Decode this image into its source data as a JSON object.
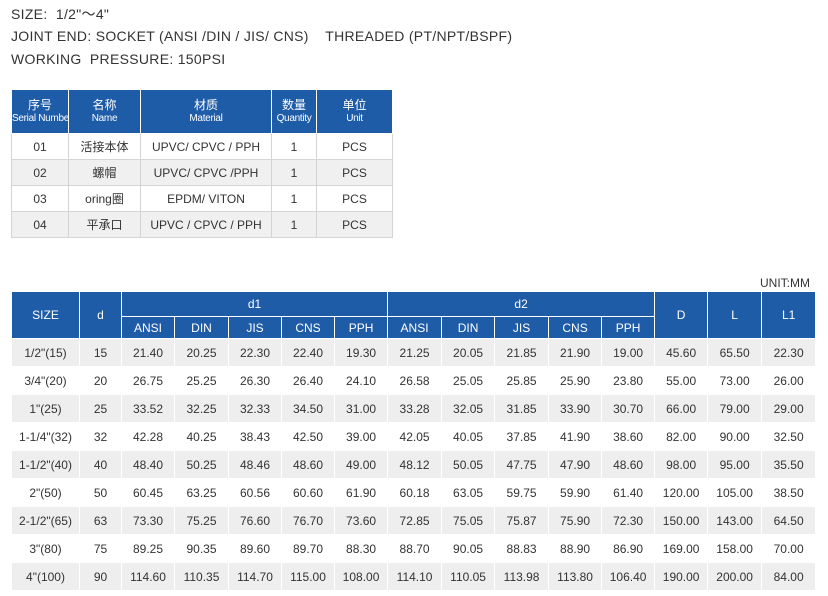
{
  "header": {
    "lines": [
      "SIZE:  1/2\"～4\"",
      "JOINT END: SOCKET (ANSI /DIN / JIS/ CNS)    THREADED (PT/NPT/BSPF)",
      "WORKING  PRESSURE: 150PSI"
    ]
  },
  "parts_table": {
    "columns": [
      {
        "zh": "序号",
        "en": "Serial Number"
      },
      {
        "zh": "名称",
        "en": "Name"
      },
      {
        "zh": "材质",
        "en": "Material"
      },
      {
        "zh": "数量",
        "en": "Quantity"
      },
      {
        "zh": "单位",
        "en": "Unit"
      }
    ],
    "rows": [
      [
        "01",
        "活接本体",
        "UPVC/ CPVC / PPH",
        "1",
        "PCS"
      ],
      [
        "02",
        "螺帽",
        "UPVC/ CPVC /PPH",
        "1",
        "PCS"
      ],
      [
        "03",
        "oring圈",
        "EPDM/ VITON",
        "1",
        "PCS"
      ],
      [
        "04",
        "平承口",
        "UPVC / CPVC / PPH",
        "1",
        "PCS"
      ]
    ]
  },
  "dimensions_table": {
    "unit": "UNIT:MM",
    "headers": {
      "size": "SIZE",
      "d": "d",
      "d1": "d1",
      "d2": "d2",
      "sub": [
        "ANSI",
        "DIN",
        "JIS",
        "CNS",
        "PPH"
      ],
      "D": "D",
      "L": "L",
      "L1": "L1"
    },
    "rows": [
      [
        "1/2\"(15)",
        "15",
        "21.40",
        "20.25",
        "22.30",
        "22.40",
        "19.30",
        "21.25",
        "20.05",
        "21.85",
        "21.90",
        "19.00",
        "45.60",
        "65.50",
        "22.30"
      ],
      [
        "3/4\"(20)",
        "20",
        "26.75",
        "25.25",
        "26.30",
        "26.40",
        "24.10",
        "26.58",
        "25.05",
        "25.85",
        "25.90",
        "23.80",
        "55.00",
        "73.00",
        "26.00"
      ],
      [
        "1\"(25)",
        "25",
        "33.52",
        "32.25",
        "32.33",
        "34.50",
        "31.00",
        "33.28",
        "32.05",
        "31.85",
        "33.90",
        "30.70",
        "66.00",
        "79.00",
        "29.00"
      ],
      [
        "1-1/4\"(32)",
        "32",
        "42.28",
        "40.25",
        "38.43",
        "42.50",
        "39.00",
        "42.05",
        "40.05",
        "37.85",
        "41.90",
        "38.60",
        "82.00",
        "90.00",
        "32.50"
      ],
      [
        "1-1/2\"(40)",
        "40",
        "48.40",
        "50.25",
        "48.46",
        "48.60",
        "49.00",
        "48.12",
        "50.05",
        "47.75",
        "47.90",
        "48.60",
        "98.00",
        "95.00",
        "35.50"
      ],
      [
        "2\"(50)",
        "50",
        "60.45",
        "63.25",
        "60.56",
        "60.60",
        "61.90",
        "60.18",
        "63.05",
        "59.75",
        "59.90",
        "61.40",
        "120.00",
        "105.00",
        "38.50"
      ],
      [
        "2-1/2\"(65)",
        "63",
        "73.30",
        "75.25",
        "76.60",
        "76.70",
        "73.60",
        "72.85",
        "75.05",
        "75.87",
        "75.90",
        "72.30",
        "150.00",
        "143.00",
        "64.50"
      ],
      [
        "3\"(80)",
        "75",
        "89.25",
        "90.35",
        "89.60",
        "89.70",
        "88.30",
        "88.70",
        "90.05",
        "88.83",
        "88.90",
        "86.90",
        "169.00",
        "158.00",
        "70.00"
      ],
      [
        "4\"(100)",
        "90",
        "114.60",
        "110.35",
        "114.70",
        "115.00",
        "108.00",
        "114.10",
        "110.05",
        "113.98",
        "113.80",
        "106.40",
        "190.00",
        "200.00",
        "84.00"
      ]
    ]
  }
}
